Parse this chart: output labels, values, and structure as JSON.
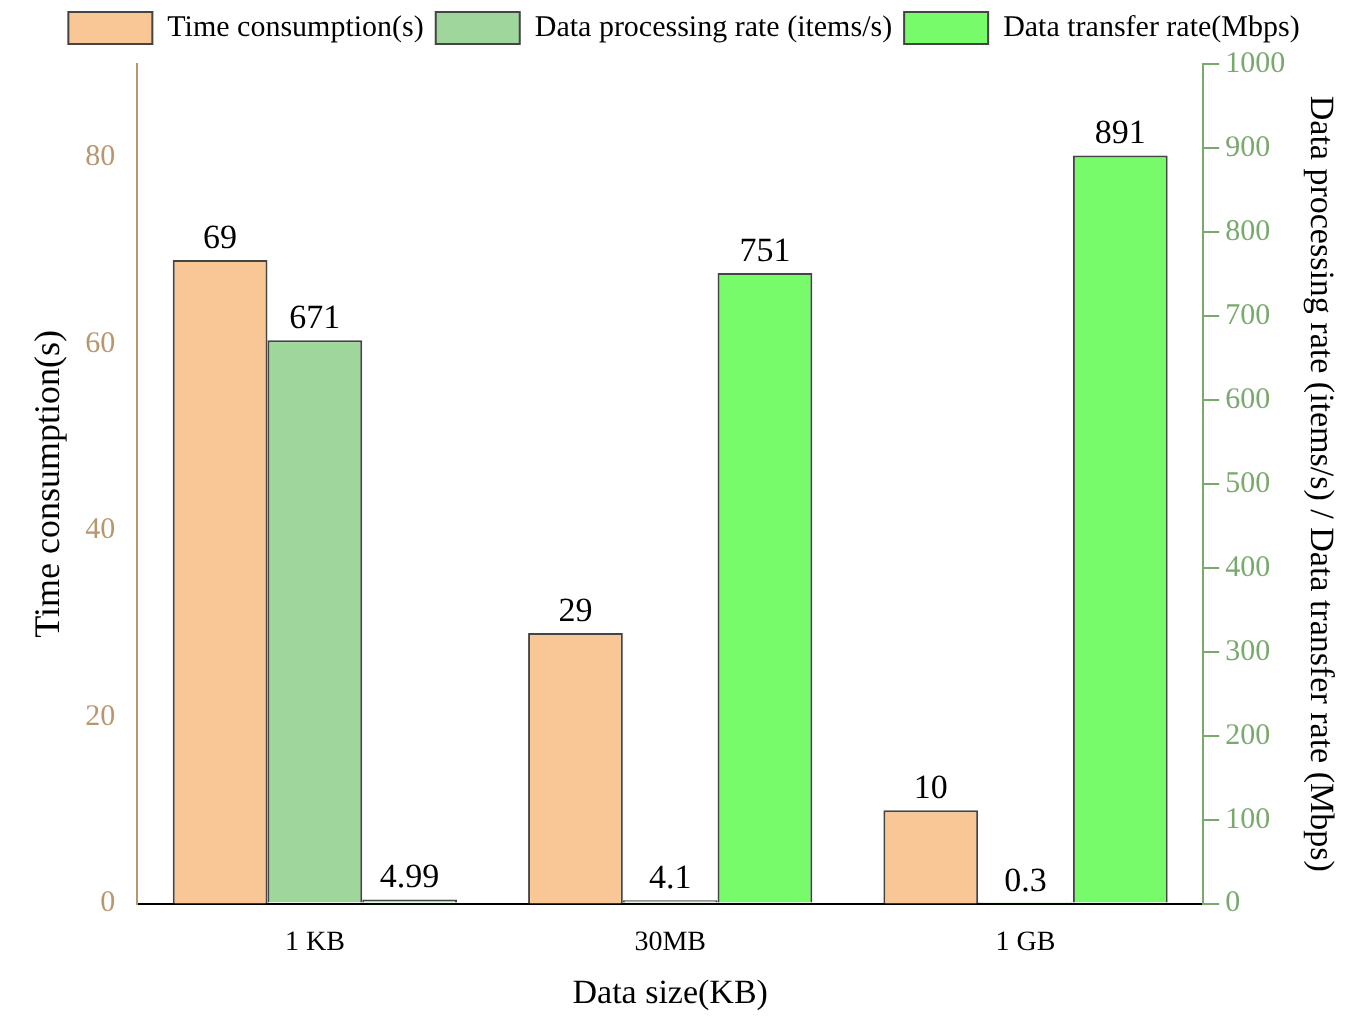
{
  "chart_data": {
    "type": "bar",
    "xlabel": "Data size(KB)",
    "ylabel": "Time consumption(s)",
    "y2label": "Data processing rate (items/s) / Data transfer rate (Mbps)",
    "categories": [
      "1 KB",
      "30MB",
      "1 GB"
    ],
    "series": [
      {
        "name": "Time consumption(s)",
        "color": "#f9c795",
        "values": [
          69,
          29,
          10
        ]
      },
      {
        "name": "Data processing rate (items/s)",
        "color": "#9fd69b",
        "values": [
          671,
          4.1,
          0.3
        ],
        "axis": "y2"
      },
      {
        "name": "Data transfer rate(Mbps)",
        "color": "#77fb6b",
        "values": [
          4.99,
          751,
          891
        ],
        "axis": "y2"
      }
    ],
    "ylim": [
      0,
      90
    ],
    "yticks": [
      0,
      20,
      40,
      60,
      80
    ],
    "y2lim": [
      0,
      1000
    ],
    "y2ticks": [
      0,
      100,
      200,
      300,
      400,
      500,
      600,
      700,
      800,
      900,
      1000
    ],
    "data_labels": true,
    "legend": "top",
    "grid": false
  }
}
